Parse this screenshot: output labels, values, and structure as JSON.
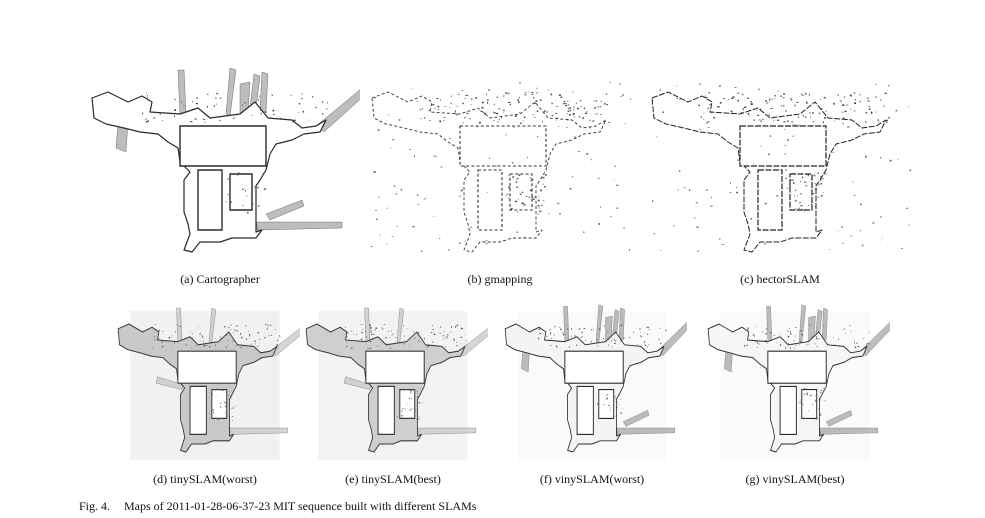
{
  "figure": {
    "label": "Fig. 4.",
    "caption": "Maps of 2011-01-28-06-37-23 MIT sequence built with different SLAMs"
  },
  "panels": [
    {
      "id": "a",
      "caption": "(a) Cartographer",
      "style": "cartographer"
    },
    {
      "id": "b",
      "caption": "(b) gmapping",
      "style": "gmapping"
    },
    {
      "id": "c",
      "caption": "(c) hectorSLAM",
      "style": "hector"
    },
    {
      "id": "d",
      "caption": "(d) tinySLAM(worst)",
      "style": "tinyworst"
    },
    {
      "id": "e",
      "caption": "(e) tinySLAM(best)",
      "style": "tinybest"
    },
    {
      "id": "f",
      "caption": "(f) vinySLAM(worst)",
      "style": "vinyworst"
    },
    {
      "id": "g",
      "caption": "(g) vinySLAM(best)",
      "style": "vinybest"
    }
  ]
}
